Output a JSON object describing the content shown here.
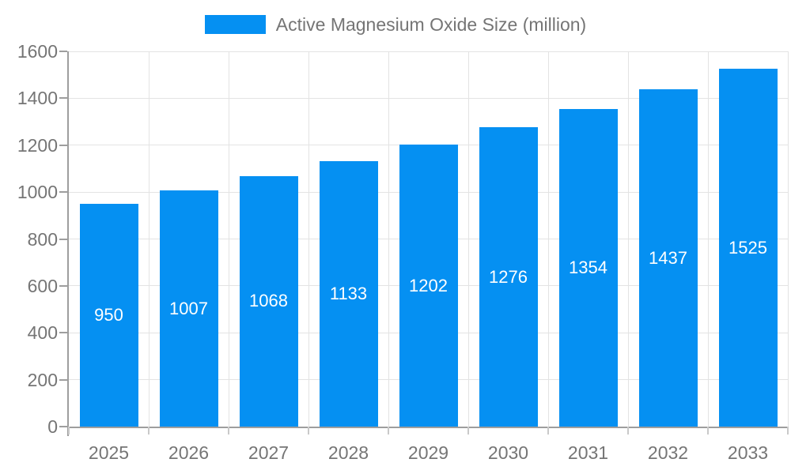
{
  "legend": {
    "label": "Active Magnesium Oxide Size (million)"
  },
  "colors": {
    "bar": "#0590f2",
    "axis_text": "#757575",
    "grid_line": "#e3e3e3",
    "axis_line": "#9e9e9e",
    "value_text": "#ffffff",
    "background": "#ffffff"
  },
  "chart_data": {
    "type": "bar",
    "title": "Active Magnesium Oxide Size (million)",
    "categories": [
      "2025",
      "2026",
      "2027",
      "2028",
      "2029",
      "2030",
      "2031",
      "2032",
      "2033"
    ],
    "values": [
      950,
      1007,
      1068,
      1133,
      1202,
      1276,
      1354,
      1437,
      1525
    ],
    "xlabel": "",
    "ylabel": "",
    "ylim": [
      0,
      1600
    ],
    "ytick_step": 200,
    "ytick_labels": [
      "0",
      "200",
      "400",
      "600",
      "800",
      "1000",
      "1200",
      "1400",
      "1600"
    ],
    "grid": true,
    "legend_position": "top",
    "value_label_position": "inside-center"
  }
}
